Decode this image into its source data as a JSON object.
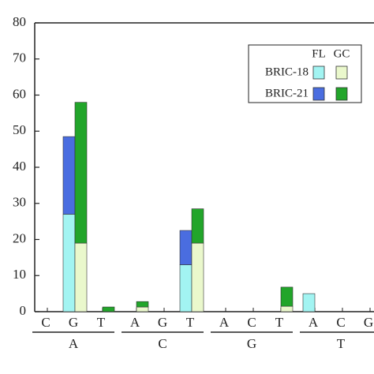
{
  "chart_data": {
    "type": "grouped-stacked-bar",
    "groups": [
      {
        "name": "A",
        "categories": [
          "C",
          "G",
          "T"
        ]
      },
      {
        "name": "C",
        "categories": [
          "A",
          "G",
          "T"
        ]
      },
      {
        "name": "G",
        "categories": [
          "A",
          "C",
          "T"
        ]
      },
      {
        "name": "T",
        "categories": [
          "A",
          "C",
          "G"
        ]
      }
    ],
    "series": [
      {
        "group": "FL",
        "name": "BRIC-18",
        "color": "#a2f4f2",
        "values": [
          0,
          27,
          0,
          0,
          0,
          13,
          0,
          0,
          0,
          5,
          0,
          0
        ]
      },
      {
        "group": "FL",
        "name": "BRIC-21",
        "color": "#4a6de0",
        "values": [
          0,
          21.5,
          0,
          0,
          0,
          9.5,
          0,
          0,
          0,
          0,
          0,
          0
        ]
      },
      {
        "group": "GC",
        "name": "BRIC-18",
        "color": "#eaf8cc",
        "values": [
          0,
          19,
          0,
          1.3,
          0,
          19,
          0,
          0,
          1.5,
          0,
          0,
          0
        ]
      },
      {
        "group": "GC",
        "name": "BRIC-21",
        "color": "#22a52a",
        "values": [
          0,
          39,
          1.3,
          1.5,
          0,
          9.5,
          0,
          0,
          5.3,
          0,
          0,
          0
        ]
      }
    ],
    "ylim": [
      0,
      80
    ],
    "yticks": [
      0,
      10,
      20,
      30,
      40,
      50,
      60,
      70,
      80
    ]
  }
}
